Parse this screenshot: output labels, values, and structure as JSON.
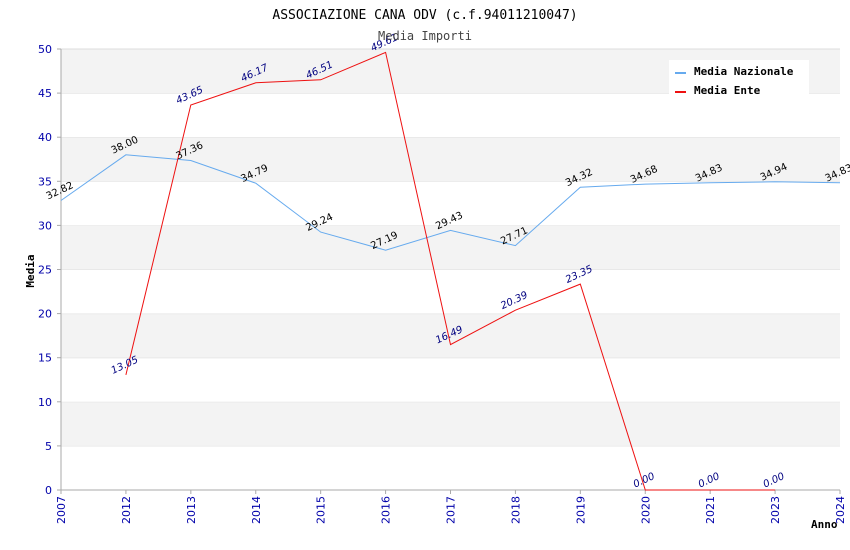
{
  "chart_data": {
    "type": "line",
    "title": "ASSOCIAZIONE CANA ODV (c.f.94011210047)",
    "subtitle": "Media Importi",
    "xlabel": "Anno",
    "ylabel": "Media",
    "ylim": [
      0,
      50
    ],
    "yticks": [
      "0",
      "5",
      "10",
      "15",
      "20",
      "25",
      "30",
      "35",
      "40",
      "45",
      "50"
    ],
    "categories": [
      "2007",
      "2012",
      "2013",
      "2014",
      "2015",
      "2016",
      "2017",
      "2018",
      "2019",
      "2020",
      "2021",
      "2023",
      "2024"
    ],
    "grid": "horizontal bands",
    "legend_position": "top-right",
    "series": [
      {
        "name": "Media Nazionale",
        "color": "#66aaee",
        "values": [
          32.82,
          38.0,
          37.36,
          34.79,
          29.24,
          27.19,
          29.43,
          27.71,
          34.32,
          34.68,
          34.83,
          34.94,
          34.83
        ],
        "labels": [
          "32.82",
          "38.00",
          "37.36",
          "34.79",
          "29.24",
          "27.19",
          "29.43",
          "27.71",
          "34.32",
          "34.68",
          "34.83",
          "34.94",
          "34.83"
        ]
      },
      {
        "name": "Media Ente",
        "color": "#ee1111",
        "values": [
          null,
          13.05,
          43.65,
          46.17,
          46.51,
          49.61,
          16.49,
          20.39,
          23.35,
          0.0,
          0.0,
          0.0,
          null
        ],
        "labels": [
          "",
          "13.05",
          "43.65",
          "46.17",
          "46.51",
          "49.61",
          "16.49",
          "20.39",
          "23.35",
          "0.00",
          "0.00",
          "0.00",
          ""
        ]
      }
    ]
  }
}
